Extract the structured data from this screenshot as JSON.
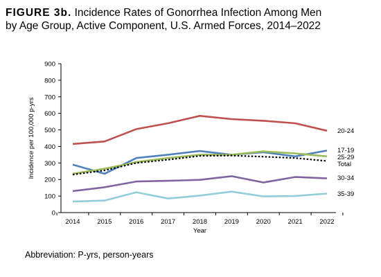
{
  "title": {
    "figure_label": "FIGURE 3b.",
    "text_line1": "Incidence Rates of Gonorrhea Infection Among Men",
    "text_line2": "by Age Group, Active Component, U.S. Armed Forces, 2014–2022"
  },
  "footnote": "Abbreviation: P-yrs, person-years",
  "chart_data": {
    "type": "line",
    "title": "Incidence Rates of Gonorrhea Infection Among Men by Age Group, Active Component, U.S. Armed Forces, 2014–2022",
    "xlabel": "Year",
    "ylabel": "Incidence per 100,000 p-yrs",
    "ylim": [
      0,
      900
    ],
    "yticks": [
      0,
      100,
      200,
      300,
      400,
      500,
      600,
      700,
      800,
      900
    ],
    "x": [
      2014,
      2015,
      2016,
      2017,
      2018,
      2019,
      2020,
      2021,
      2022
    ],
    "grid": false,
    "legend": "labels at right end of lines",
    "series": [
      {
        "name": "20-24",
        "color": "#c0504d",
        "dash": false,
        "values": [
          415,
          430,
          505,
          540,
          585,
          565,
          555,
          540,
          495
        ]
      },
      {
        "name": "17-19",
        "color": "#4f81bd",
        "dash": false,
        "values": [
          290,
          235,
          330,
          350,
          372,
          350,
          365,
          340,
          375
        ]
      },
      {
        "name": "25-29",
        "color": "#9bbb59",
        "dash": false,
        "values": [
          235,
          265,
          305,
          330,
          350,
          350,
          370,
          358,
          340
        ]
      },
      {
        "name": "Total",
        "color": "#000000",
        "dash": true,
        "values": [
          230,
          255,
          300,
          320,
          343,
          345,
          338,
          330,
          312
        ]
      },
      {
        "name": "30-34",
        "color": "#8064a2",
        "dash": false,
        "values": [
          130,
          153,
          188,
          192,
          198,
          220,
          182,
          215,
          207
        ]
      },
      {
        "name": "35-39",
        "color": "#92cddc",
        "dash": false,
        "values": [
          67,
          73,
          123,
          85,
          103,
          127,
          98,
          100,
          115
        ]
      }
    ],
    "end_labels": [
      "20-24",
      "17-19",
      "25-29",
      "Total",
      "30-34",
      "35-39"
    ]
  }
}
